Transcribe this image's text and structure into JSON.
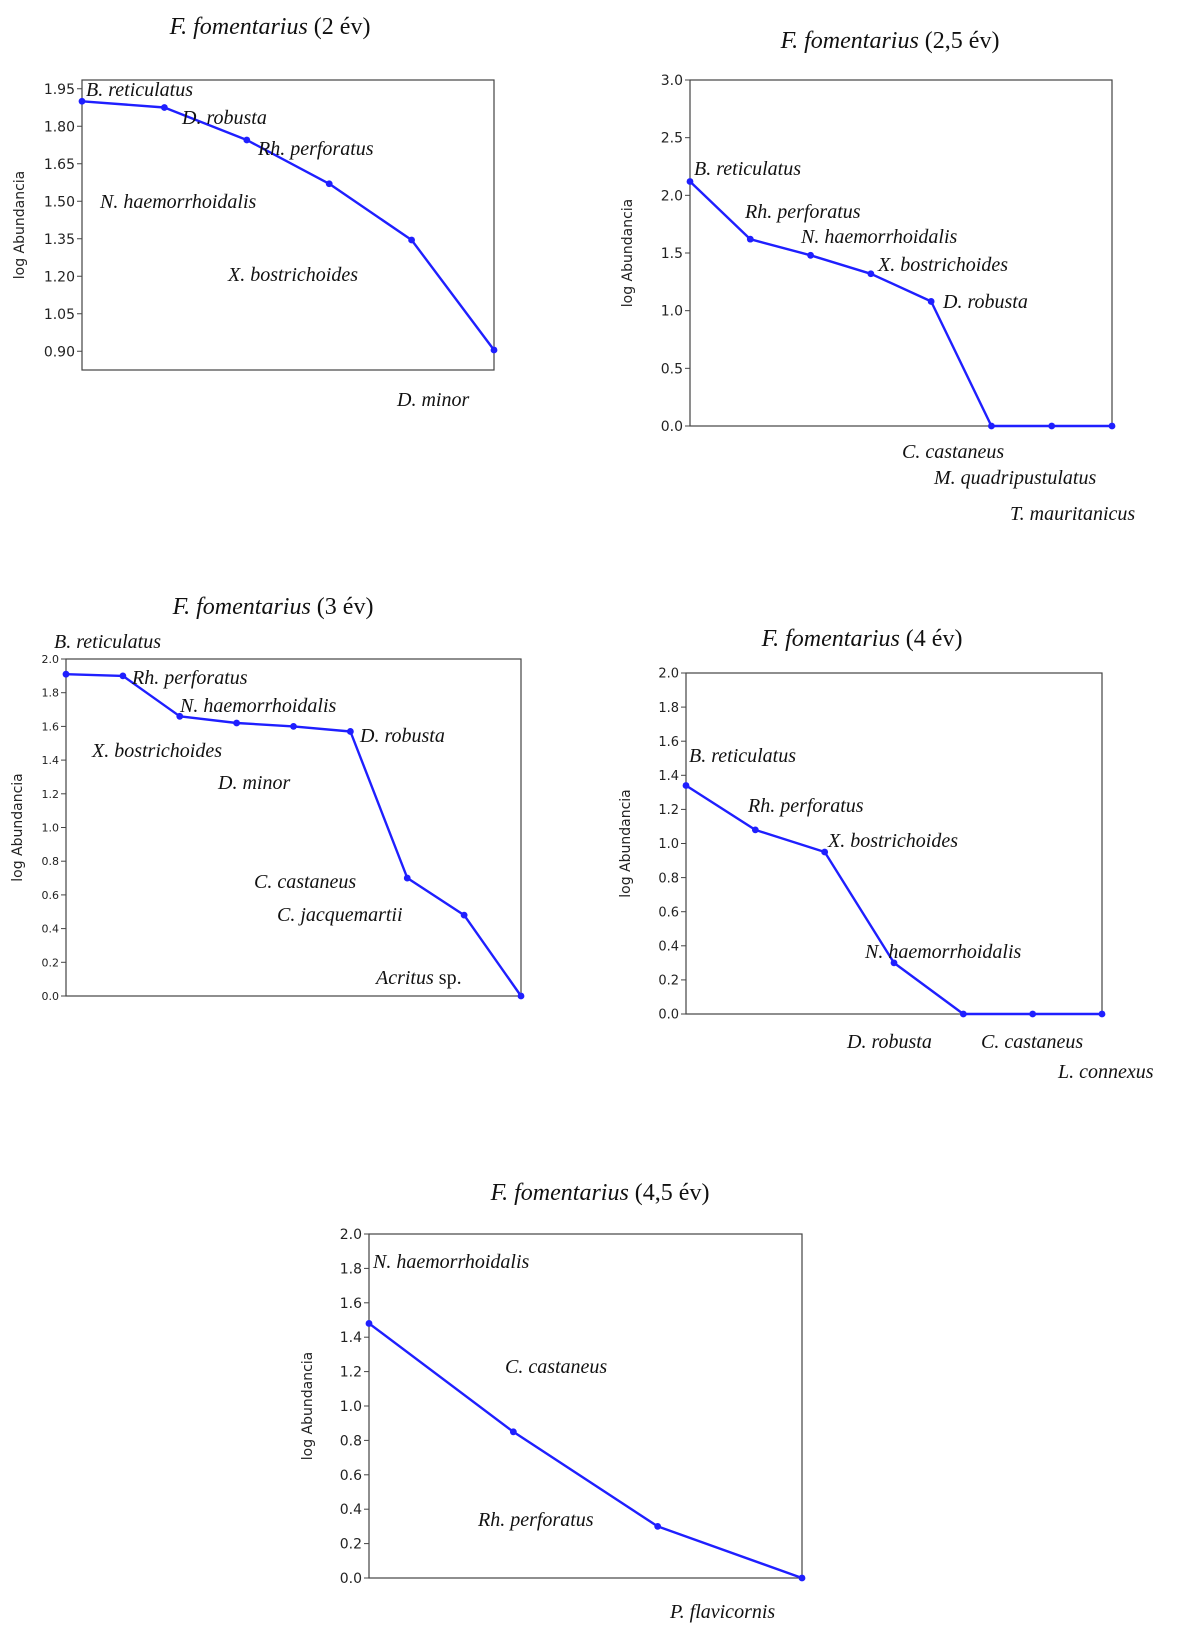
{
  "colors": {
    "line": "#1f1fff",
    "frame": "#444444",
    "text": "#111111"
  },
  "chart_data": [
    {
      "type": "line",
      "title": {
        "species": "F. fomentarius",
        "rest": " (2 év)"
      },
      "ylabel": "log Abundancia",
      "ylim": [
        0.825,
        1.985
      ],
      "yticks": [
        "1.95",
        "1.80",
        "1.65",
        "1.50",
        "1.35",
        "1.20",
        "1.05",
        "0.90"
      ],
      "grid": false,
      "x": [
        1,
        2,
        3,
        4,
        5,
        6
      ],
      "values": [
        1.9,
        1.875,
        1.745,
        1.57,
        1.345,
        0.905
      ],
      "point_labels": [
        {
          "species": "B. reticulatus",
          "rest": ""
        },
        {
          "species": "D. robusta",
          "rest": ""
        },
        {
          "species": "Rh. perforatus",
          "rest": ""
        },
        {
          "species": "N. haemorrhoidalis",
          "rest": ""
        },
        {
          "species": "X. bostrichoides",
          "rest": ""
        },
        {
          "species": "D. minor",
          "rest": ""
        }
      ]
    },
    {
      "type": "line",
      "title": {
        "species": "F. fomentarius",
        "rest": " (2,5 év)"
      },
      "ylabel": "log Abundancia",
      "ylim": [
        0,
        3.0
      ],
      "yticks": [
        "3.0",
        "2.5",
        "2.0",
        "1.5",
        "1.0",
        "0.5",
        "0.0"
      ],
      "grid": false,
      "x": [
        1,
        2,
        3,
        4,
        5,
        6,
        7,
        8
      ],
      "values": [
        2.12,
        1.62,
        1.48,
        1.32,
        1.08,
        0.0,
        0.0,
        0.0
      ],
      "point_labels": [
        {
          "species": "B. reticulatus",
          "rest": ""
        },
        {
          "species": "Rh. perforatus",
          "rest": ""
        },
        {
          "species": "N. haemorrhoidalis",
          "rest": ""
        },
        {
          "species": "X. bostrichoides",
          "rest": ""
        },
        {
          "species": "D. robusta",
          "rest": ""
        },
        {
          "species": "C. castaneus",
          "rest": ""
        },
        {
          "species": "M. quadripustulatus",
          "rest": ""
        },
        {
          "species": "T. mauritanicus",
          "rest": ""
        }
      ]
    },
    {
      "type": "line",
      "title": {
        "species": "F. fomentarius",
        "rest": " (3 év)"
      },
      "ylabel": "log Abundancia",
      "ylim": [
        0,
        2.0
      ],
      "yticks": [
        "2.0",
        "1.8",
        "1.6",
        "1.4",
        "1.2",
        "1.0",
        "0.8",
        "0.6",
        "0.4",
        "0.2",
        "0.0"
      ],
      "grid": false,
      "x": [
        1,
        2,
        3,
        4,
        5,
        6,
        7,
        8,
        9
      ],
      "values": [
        1.91,
        1.9,
        1.66,
        1.62,
        1.6,
        1.57,
        0.7,
        0.48,
        0.0
      ],
      "point_labels": [
        {
          "species": "B. reticulatus",
          "rest": ""
        },
        {
          "species": "Rh. perforatus",
          "rest": ""
        },
        {
          "species": "N. haemorrhoidalis",
          "rest": ""
        },
        {
          "species": "X. bostrichoides",
          "rest": ""
        },
        {
          "species": "D. minor",
          "rest": ""
        },
        {
          "species": "D. robusta",
          "rest": ""
        },
        {
          "species": "C. castaneus",
          "rest": ""
        },
        {
          "species": "C. jacquemartii",
          "rest": ""
        },
        {
          "species": "Acritus",
          "rest": " sp."
        }
      ]
    },
    {
      "type": "line",
      "title": {
        "species": "F. fomentarius",
        "rest": " (4 év)"
      },
      "ylabel": "log Abundancia",
      "ylim": [
        0,
        2.0
      ],
      "yticks": [
        "2.0",
        "1.8",
        "1.6",
        "1.4",
        "1.2",
        "1.0",
        "0.8",
        "0.6",
        "0.4",
        "0.2",
        "0.0"
      ],
      "grid": false,
      "x": [
        1,
        2,
        3,
        4,
        5,
        6,
        7
      ],
      "values": [
        1.34,
        1.08,
        0.95,
        0.3,
        0.0,
        0.0,
        0.0
      ],
      "point_labels": [
        {
          "species": "B. reticulatus",
          "rest": ""
        },
        {
          "species": "Rh. perforatus",
          "rest": ""
        },
        {
          "species": "X. bostrichoides",
          "rest": ""
        },
        {
          "species": "N. haemorrhoidalis",
          "rest": ""
        },
        {
          "species": "D. robusta",
          "rest": ""
        },
        {
          "species": "C. castaneus",
          "rest": ""
        },
        {
          "species": "L. connexus",
          "rest": ""
        }
      ]
    },
    {
      "type": "line",
      "title": {
        "species": "F. fomentarius",
        "rest": " (4,5 év)"
      },
      "ylabel": "log Abundancia",
      "ylim": [
        0,
        2.0
      ],
      "yticks": [
        "2.0",
        "1.8",
        "1.6",
        "1.4",
        "1.2",
        "1.0",
        "0.8",
        "0.6",
        "0.4",
        "0.2",
        "0.0"
      ],
      "grid": false,
      "x": [
        1,
        2,
        3,
        4
      ],
      "values": [
        1.48,
        0.85,
        0.3,
        0.0
      ],
      "point_labels": [
        {
          "species": "N. haemorrhoidalis",
          "rest": ""
        },
        {
          "species": "C. castaneus",
          "rest": ""
        },
        {
          "species": "Rh. perforatus",
          "rest": ""
        },
        {
          "species": "P. flavicornis",
          "rest": ""
        }
      ]
    }
  ]
}
